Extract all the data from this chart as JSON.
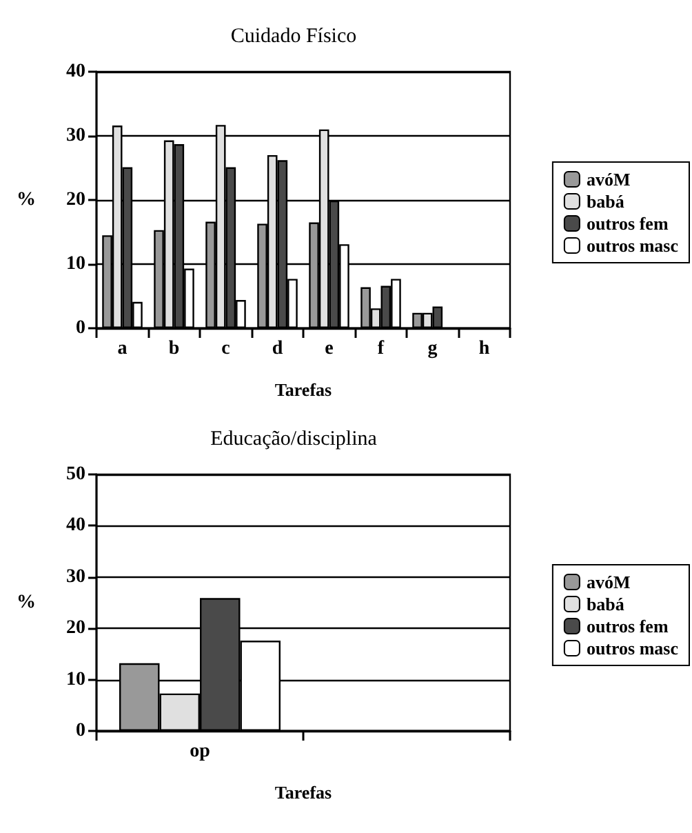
{
  "chart_data": [
    {
      "type": "bar",
      "title": "Cuidado Físico",
      "xlabel": "Tarefas",
      "ylabel": "%",
      "categories": [
        "a",
        "b",
        "c",
        "d",
        "e",
        "f",
        "g",
        "h"
      ],
      "series": [
        {
          "name": "avóM",
          "color": "#999999",
          "values": [
            14.5,
            15.3,
            16.6,
            16.3,
            16.5,
            6.4,
            2.4,
            null
          ]
        },
        {
          "name": "babá",
          "color": "#e0e0e0",
          "values": [
            31.6,
            29.3,
            31.7,
            27.0,
            31.0,
            3.1,
            2.4,
            null
          ]
        },
        {
          "name": "outros fem",
          "color": "#4a4a4a",
          "values": [
            25.1,
            28.7,
            25.1,
            26.2,
            19.9,
            6.6,
            3.4,
            null
          ]
        },
        {
          "name": "outros masc",
          "color": "#ffffff",
          "values": [
            4.1,
            9.3,
            4.4,
            7.7,
            13.1,
            7.7,
            null,
            null
          ]
        }
      ],
      "ylim": [
        0,
        40
      ],
      "yticks": [
        0,
        10,
        20,
        30,
        40
      ],
      "grid": "y",
      "legend": "right"
    },
    {
      "type": "bar",
      "title": "Educação/disciplina",
      "xlabel": "Tarefas",
      "ylabel": "%",
      "categories": [
        "op",
        null
      ],
      "series": [
        {
          "name": "avóM",
          "color": "#999999",
          "values": [
            13.2,
            null
          ]
        },
        {
          "name": "babá",
          "color": "#e0e0e0",
          "values": [
            7.3,
            null
          ]
        },
        {
          "name": "outros fem",
          "color": "#4a4a4a",
          "values": [
            25.9,
            null
          ]
        },
        {
          "name": "outros masc",
          "color": "#ffffff",
          "values": [
            17.6,
            null
          ]
        }
      ],
      "ylim": [
        0,
        50
      ],
      "yticks": [
        0,
        10,
        20,
        30,
        40,
        50
      ],
      "grid": "y",
      "legend": "right"
    }
  ]
}
